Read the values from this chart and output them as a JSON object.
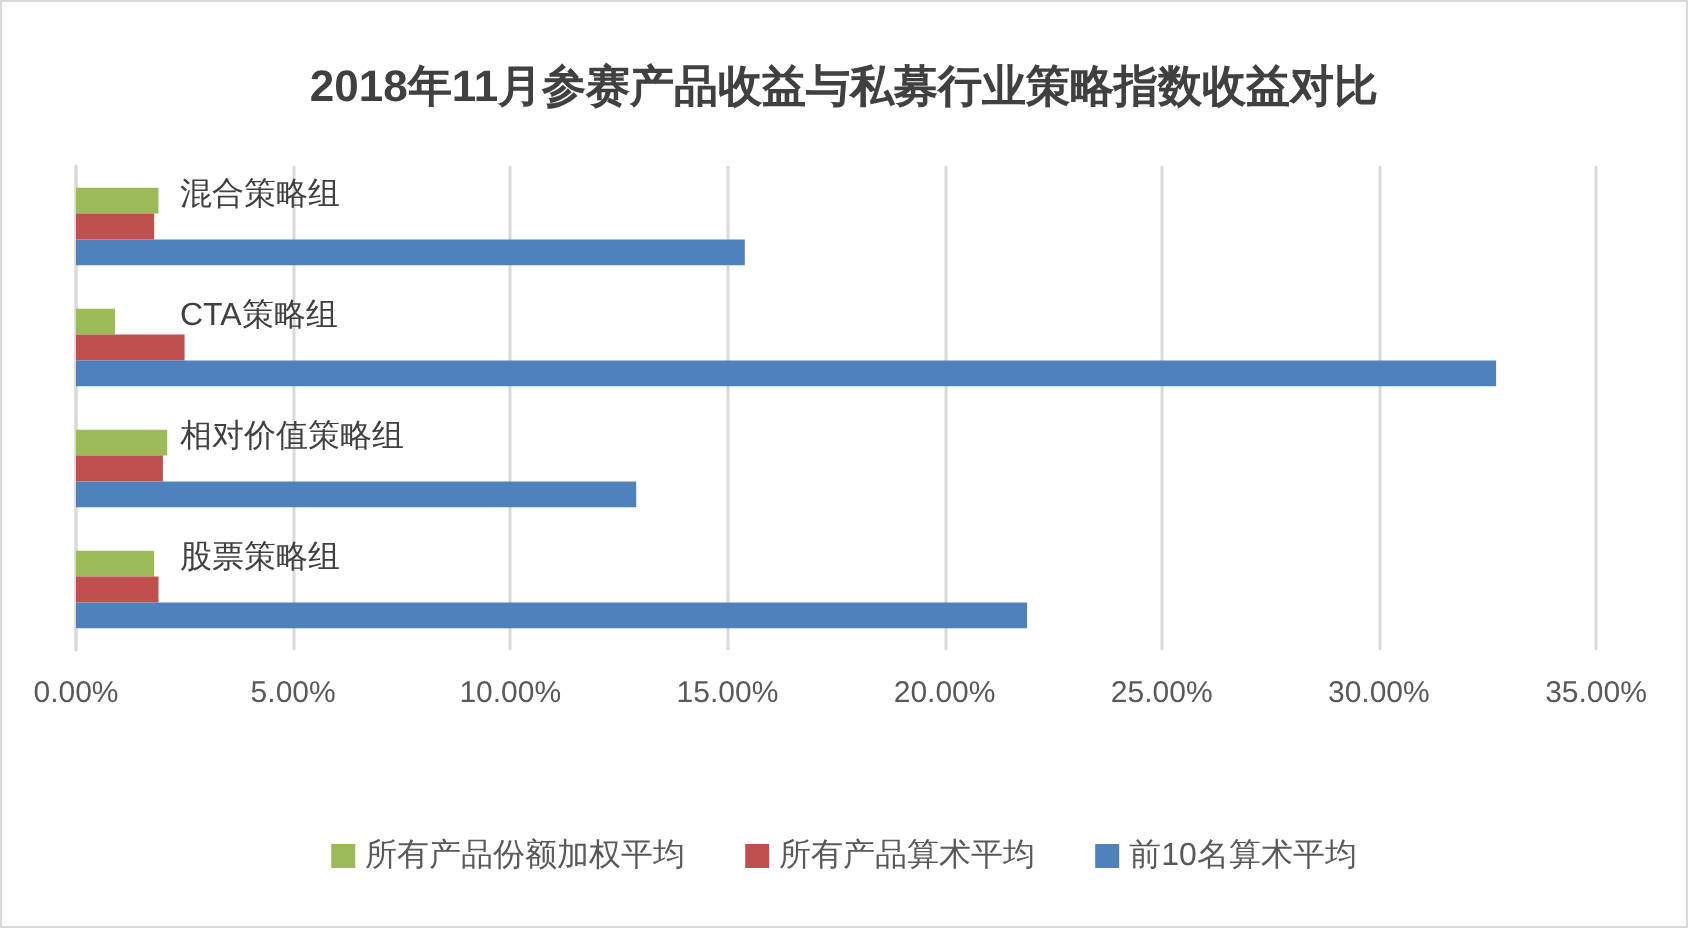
{
  "chart_data": {
    "type": "bar",
    "orientation": "horizontal",
    "title": "2018年11月参赛产品收益与私募行业策略指数收益对比",
    "categories": [
      "混合策略组",
      "CTA策略组",
      "相对价值策略组",
      "股票策略组"
    ],
    "series": [
      {
        "name": "所有产品份额加权平均",
        "color": "#9bbb59",
        "values": [
          1.9,
          0.9,
          2.1,
          1.8
        ]
      },
      {
        "name": "所有产品算术平均",
        "color": "#c0504d",
        "values": [
          1.8,
          2.5,
          2.0,
          1.9
        ]
      },
      {
        "name": "前10名算术平均",
        "color": "#4f81bd",
        "values": [
          15.4,
          32.7,
          12.9,
          21.9
        ]
      }
    ],
    "xlim": [
      0,
      35
    ],
    "xticks": [
      {
        "value": 0,
        "label": "0.00%"
      },
      {
        "value": 5,
        "label": "5.00%"
      },
      {
        "value": 10,
        "label": "10.00%"
      },
      {
        "value": 15,
        "label": "15.00%"
      },
      {
        "value": 20,
        "label": "20.00%"
      },
      {
        "value": 25,
        "label": "25.00%"
      },
      {
        "value": 30,
        "label": "30.00%"
      },
      {
        "value": 35,
        "label": "35.00%"
      }
    ],
    "grid": "x",
    "legend": "bottom"
  }
}
